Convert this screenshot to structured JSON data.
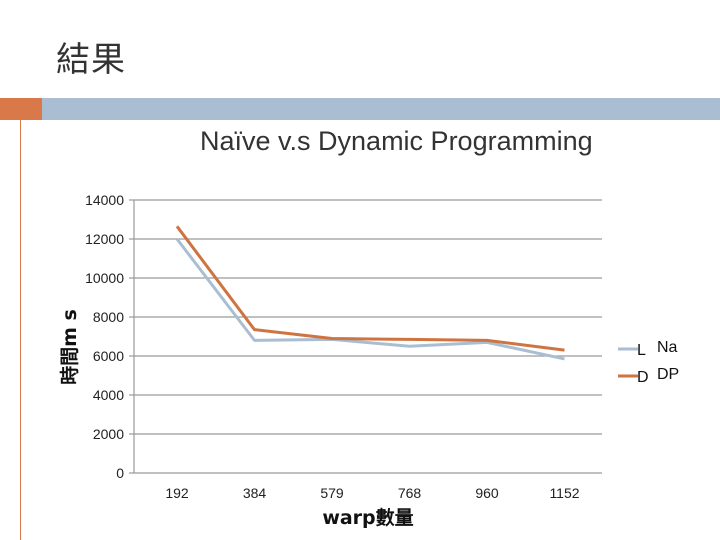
{
  "slide": {
    "title": "結果"
  },
  "colors": {
    "accent_orange": "#d9794a",
    "accent_blue": "#a9bed3",
    "naive": "#a9bed3",
    "dp": "#cf7440"
  },
  "legend": [
    {
      "marker": "L",
      "label": "Na"
    },
    {
      "marker": "D",
      "label": "DP"
    }
  ],
  "chart_data": {
    "type": "line",
    "title": "Naïve v.s Dynamic Programming",
    "xlabel": "warp數量",
    "ylabel": "時間m s",
    "categories": [
      "192",
      "384",
      "579",
      "768",
      "960",
      "1152"
    ],
    "ylim": [
      0,
      14000
    ],
    "yticks": [
      "0",
      "2000",
      "4000",
      "6000",
      "8000",
      "10000",
      "12000",
      "14000"
    ],
    "grid": true,
    "legend_position": "right",
    "series": [
      {
        "values": [
          12000,
          6800,
          6850,
          6500,
          6700,
          5850
        ]
      },
      {
        "values": [
          12650,
          7350,
          6900,
          6850,
          6800,
          6300
        ]
      }
    ]
  }
}
